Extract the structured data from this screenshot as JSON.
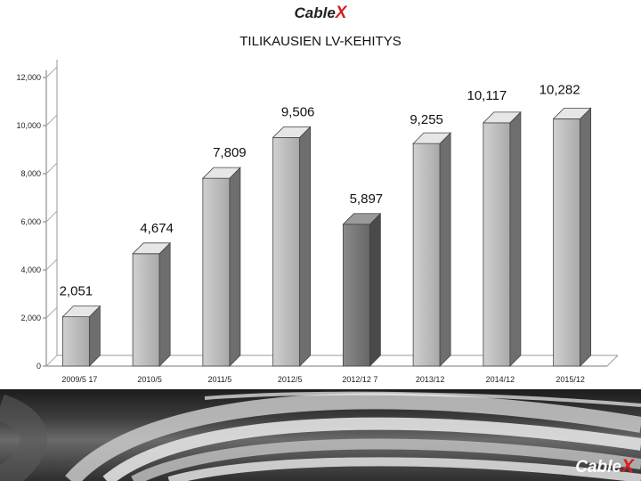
{
  "brand": {
    "name": "Cable",
    "mark": "X"
  },
  "chart_data": {
    "type": "bar",
    "title": "TILIKAUSIEN LV-KEHITYS",
    "categories": [
      "2009/5 17",
      "2010/5",
      "2011/5",
      "2012/5",
      "2012/12 7",
      "2013/12",
      "2014/12",
      "2015/12"
    ],
    "values": [
      2051,
      4674,
      7809,
      9506,
      5897,
      9255,
      10117,
      10282
    ],
    "value_labels": [
      "2,051",
      "4,674",
      "7,809",
      "9,506",
      "5,897",
      "9,255",
      "10,117",
      "10,282"
    ],
    "ylim": [
      0,
      12000
    ],
    "yticks": [
      "0",
      "2,000",
      "4,000",
      "6,000",
      "8,000",
      "10,000",
      "12,000"
    ],
    "xlabel": "",
    "ylabel": "",
    "grid": false,
    "bar_color": "#c4c4c4",
    "highlight_color": "#7a7a7a",
    "highlight_index": 4
  }
}
